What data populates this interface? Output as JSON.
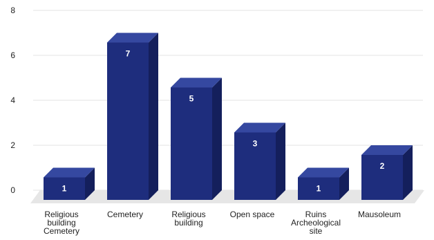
{
  "chart_data": {
    "type": "bar",
    "categories": [
      [
        "Religious",
        "building",
        "Cemetery"
      ],
      [
        "Cemetery"
      ],
      [
        "Religious",
        "building"
      ],
      [
        "Open space"
      ],
      [
        "Ruins",
        "Archeological",
        "site"
      ],
      [
        "Mausoleum"
      ]
    ],
    "values": [
      1,
      7,
      5,
      3,
      1,
      2
    ],
    "data_labels": [
      "1",
      "7",
      "5",
      "3",
      "1",
      "2"
    ],
    "yticks": [
      "0",
      "2",
      "4",
      "6",
      "8"
    ],
    "ylim": [
      0,
      8
    ],
    "grid": true,
    "style": "3d",
    "colors": {
      "bar_front": "#1e2d7d",
      "bar_top": "#3548a0",
      "bar_side": "#141f5c",
      "floor": "#e6e6e6"
    }
  }
}
